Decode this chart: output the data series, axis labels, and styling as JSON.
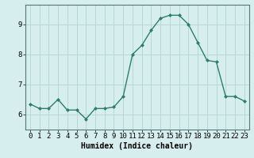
{
  "x": [
    0,
    1,
    2,
    3,
    4,
    5,
    6,
    7,
    8,
    9,
    10,
    11,
    12,
    13,
    14,
    15,
    16,
    17,
    18,
    19,
    20,
    21,
    22,
    23
  ],
  "y": [
    6.35,
    6.2,
    6.2,
    6.5,
    6.15,
    6.15,
    5.85,
    6.2,
    6.2,
    6.25,
    6.6,
    8.0,
    8.3,
    8.8,
    9.2,
    9.3,
    9.3,
    9.0,
    8.4,
    7.8,
    7.75,
    6.6,
    6.6,
    6.45
  ],
  "line_color": "#2e7d6e",
  "marker": "D",
  "markersize": 2.0,
  "linewidth": 1.0,
  "background_color": "#d6eeee",
  "grid_color": "#b8d8d8",
  "xlabel": "Humidex (Indice chaleur)",
  "xlabel_fontsize": 7,
  "tick_fontsize": 6.5,
  "ylim": [
    5.5,
    9.65
  ],
  "xlim": [
    -0.5,
    23.5
  ],
  "yticks": [
    6,
    7,
    8,
    9
  ],
  "xticks": [
    0,
    1,
    2,
    3,
    4,
    5,
    6,
    7,
    8,
    9,
    10,
    11,
    12,
    13,
    14,
    15,
    16,
    17,
    18,
    19,
    20,
    21,
    22,
    23
  ]
}
